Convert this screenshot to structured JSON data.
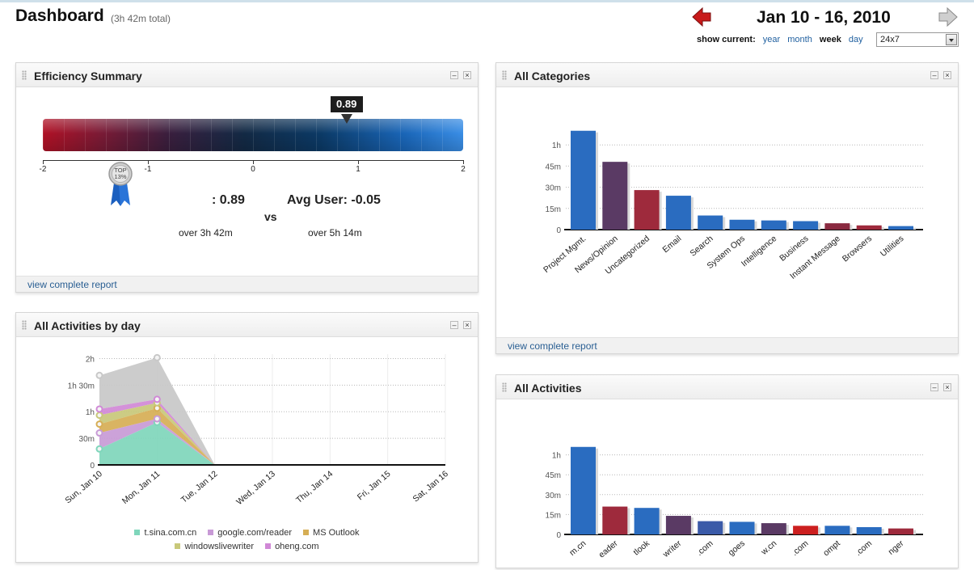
{
  "header": {
    "title": "Dashboard",
    "subtitle": "(3h 42m total)",
    "date_range": "Jan 10 - 16, 2010",
    "prev_icon": "red-left-arrow-icon",
    "next_icon": "gray-right-arrow-icon",
    "show_current_label": "show current:",
    "periods": {
      "year": "year",
      "month": "month",
      "week": "week",
      "day": "day"
    },
    "active_period": "week",
    "schedule_select": "24x7"
  },
  "panels": {
    "efficiency": {
      "title": "Efficiency Summary",
      "gauge_value": "0.89",
      "gauge_value_num": 0.89,
      "gauge_range": [
        -2,
        2
      ],
      "gauge_ticks": [
        "-2",
        "-1",
        "0",
        "1",
        "2"
      ],
      "badge_text_top": "TOP",
      "badge_text_pct": "13%",
      "user_score": ": 0.89",
      "vs": "vs",
      "avg_user": "Avg User: -0.05",
      "user_time": "over 3h 42m",
      "avg_time": "over 5h 14m",
      "footer": "view complete report"
    },
    "categories": {
      "title": "All Categories",
      "footer": "view complete report"
    },
    "by_day": {
      "title": "All Activities by day"
    },
    "activities": {
      "title": "All Activities"
    }
  },
  "chart_data": [
    {
      "type": "bar",
      "panel": "All Categories",
      "categories": [
        "Project Mgmt.",
        "News/Opinion",
        "Uncategorized",
        "Email",
        "Search",
        "System Ops",
        "Intelligence",
        "Business",
        "Instant Message",
        "Browsers",
        "Utilities"
      ],
      "values": [
        70,
        48,
        28,
        24,
        10,
        7,
        6.5,
        6,
        4.5,
        3,
        2.5
      ],
      "colors": [
        "#2a6cc0",
        "#5a3a64",
        "#9e2a3c",
        "#2a6cc0",
        "#2a6cc0",
        "#2a6cc0",
        "#2a6cc0",
        "#2a6cc0",
        "#8a2a40",
        "#9e2a3c",
        "#2a6cc0"
      ],
      "y_unit": "minutes",
      "yticks": [
        0,
        15,
        30,
        45,
        60
      ],
      "ytick_labels": [
        "0",
        "15m",
        "30m",
        "45m",
        "1h"
      ],
      "ylim": [
        0,
        75
      ],
      "grid": true
    },
    {
      "type": "bar",
      "panel": "All Activities",
      "categories": [
        "m.cn",
        "eader",
        "tlook",
        "writer",
        ".com",
        "goes",
        "w.cn",
        ".com",
        "ompt",
        ".com",
        "nger"
      ],
      "values": [
        66,
        21,
        20,
        14,
        10,
        9.5,
        8.5,
        6.5,
        6.5,
        5.5,
        4.5
      ],
      "colors": [
        "#2a6cc0",
        "#9e2a3c",
        "#2a6cc0",
        "#5a3a64",
        "#3a5aa8",
        "#2a6cc0",
        "#5a3a64",
        "#cc1f1f",
        "#2a6cc0",
        "#2a6cc0",
        "#9e2a3c"
      ],
      "y_unit": "minutes",
      "yticks": [
        0,
        15,
        30,
        45,
        60
      ],
      "ytick_labels": [
        "0",
        "15m",
        "30m",
        "45m",
        "1h"
      ],
      "ylim": [
        0,
        75
      ],
      "grid": true
    },
    {
      "type": "area",
      "panel": "All Activities by day",
      "x": [
        "Sun, Jan 10",
        "Mon, Jan 11",
        "Tue, Jan 12",
        "Wed, Jan 13",
        "Thu, Jan 14",
        "Fri, Jan 15",
        "Sat, Jan 16"
      ],
      "y_unit": "minutes",
      "yticks": [
        0,
        30,
        60,
        90,
        120
      ],
      "ytick_labels": [
        "0",
        "30m",
        "1h",
        "1h 30m",
        "2h"
      ],
      "ylim": [
        0,
        125
      ],
      "stacked": true,
      "series": [
        {
          "name": "t.sina.com.cn",
          "color": "#7fd6bb",
          "values": [
            18,
            48,
            0,
            0,
            0,
            0,
            0
          ]
        },
        {
          "name": "google.com/reader",
          "color": "#c89ad6",
          "values": [
            18,
            4,
            0,
            0,
            0,
            0,
            0
          ]
        },
        {
          "name": "MS Outlook",
          "color": "#d6ae55",
          "values": [
            10,
            12,
            0,
            0,
            0,
            0,
            0
          ]
        },
        {
          "name": "windowslivewriter",
          "color": "#c8c87a",
          "values": [
            10,
            6,
            0,
            0,
            0,
            0,
            0
          ]
        },
        {
          "name": "oheng.com",
          "color": "#d088d6",
          "values": [
            7,
            4,
            0,
            0,
            0,
            0,
            0
          ]
        },
        {
          "color": "#c8c8c8",
          "values": [
            38,
            47,
            0,
            0,
            0,
            0,
            0
          ]
        }
      ],
      "grid": true
    }
  ]
}
